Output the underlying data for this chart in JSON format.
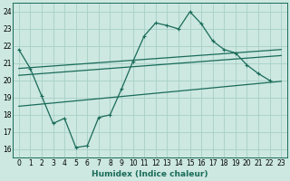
{
  "xlabel": "Humidex (Indice chaleur)",
  "xlim": [
    -0.5,
    23.5
  ],
  "ylim": [
    15.5,
    24.5
  ],
  "yticks": [
    16,
    17,
    18,
    19,
    20,
    21,
    22,
    23,
    24
  ],
  "xticks": [
    0,
    1,
    2,
    3,
    4,
    5,
    6,
    7,
    8,
    9,
    10,
    11,
    12,
    13,
    14,
    15,
    16,
    17,
    18,
    19,
    20,
    21,
    22,
    23
  ],
  "bg_color": "#cce8e0",
  "grid_color": "#a8cfc8",
  "line_color": "#1a6b5a",
  "line1_x": [
    0,
    1,
    2,
    3,
    4,
    5,
    6,
    7,
    8,
    9,
    10,
    11,
    12,
    13,
    14,
    15,
    16,
    17,
    18,
    19,
    20,
    21,
    22
  ],
  "line1_y": [
    21.8,
    20.7,
    19.1,
    17.5,
    17.8,
    16.1,
    16.2,
    17.85,
    18.0,
    19.5,
    21.1,
    22.6,
    23.35,
    23.2,
    23.0,
    24.0,
    23.3,
    22.3,
    21.8,
    21.6,
    20.9,
    20.4,
    20.0
  ],
  "line2_x": [
    0,
    23
  ],
  "line2_y": [
    20.7,
    21.8
  ],
  "line3_x": [
    0,
    23
  ],
  "line3_y": [
    20.3,
    21.45
  ],
  "line4_x": [
    0,
    23
  ],
  "line4_y": [
    18.5,
    19.95
  ]
}
